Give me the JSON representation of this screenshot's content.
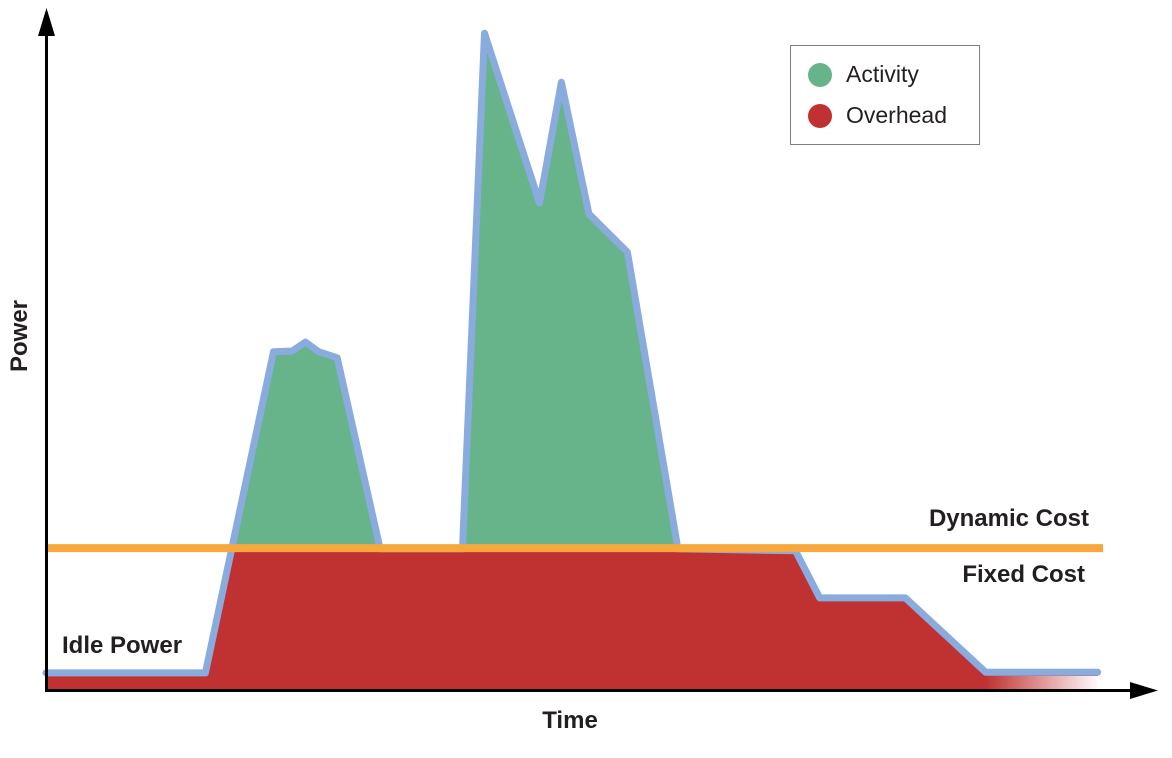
{
  "labels": {
    "y_axis": "Power",
    "x_axis": "Time",
    "idle_power": "Idle Power",
    "dynamic_cost": "Dynamic Cost",
    "fixed_cost": "Fixed Cost"
  },
  "legend": {
    "items": [
      {
        "label": "Activity",
        "color": "#67b38a"
      },
      {
        "label": "Overhead",
        "color": "#c03231"
      }
    ]
  },
  "colors": {
    "activity_fill": "#67b38a",
    "overhead_fill": "#c03231",
    "curve_stroke": "#8aabdd",
    "cost_line": "#f6a83c",
    "axis": "#000000",
    "text": "#231f20",
    "legend_border": "#7f7f7f"
  },
  "chart_data": {
    "type": "area",
    "title": "",
    "xlabel": "Time",
    "ylabel": "Power",
    "x_range": [
      0,
      100
    ],
    "y_range": [
      0,
      100
    ],
    "grid": false,
    "legend_position": "top-right",
    "legend_entries": [
      "Activity",
      "Overhead"
    ],
    "annotations": [
      "Idle Power",
      "Dynamic Cost",
      "Fixed Cost"
    ],
    "fixed_cost_level": 21.1,
    "idle_power_level": 2.8,
    "series": [
      {
        "name": "Power curve",
        "points": [
          [
            0,
            2.8
          ],
          [
            14.5,
            2.8
          ],
          [
            20.7,
            49.9
          ],
          [
            22.4,
            50.0
          ],
          [
            23.6,
            51.3
          ],
          [
            24.8,
            49.9
          ],
          [
            26.5,
            49.0
          ],
          [
            30.4,
            21.0
          ],
          [
            37.9,
            21.0
          ],
          [
            39.9,
            96.6
          ],
          [
            44.9,
            71.7
          ],
          [
            46.9,
            89.4
          ],
          [
            49.4,
            70.1
          ],
          [
            52.9,
            64.5
          ],
          [
            57.5,
            21.0
          ],
          [
            68.2,
            20.7
          ],
          [
            70.4,
            13.8
          ],
          [
            78.2,
            13.8
          ],
          [
            85.5,
            2.9
          ],
          [
            95.7,
            2.9
          ]
        ]
      }
    ],
    "regions": [
      {
        "name": "Activity",
        "meaning": "area between power curve and fixed-cost line",
        "color": "#67b38a"
      },
      {
        "name": "Overhead",
        "meaning": "area under power curve below fixed-cost line, fades out at right edge",
        "color": "#c03231"
      }
    ]
  }
}
